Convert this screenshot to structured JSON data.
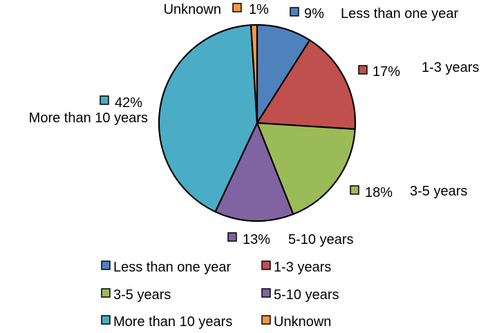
{
  "chart_data": {
    "type": "pie",
    "title": "",
    "legend_position": "bottom",
    "categories": [
      "Less than one year",
      "1-3 years",
      "3-5 years",
      "5-10 years",
      "More than 10 years",
      "Unknown"
    ],
    "values": [
      9,
      17,
      18,
      13,
      42,
      1
    ],
    "value_labels": [
      "9%",
      "17%",
      "18%",
      "13%",
      "42%",
      "1%"
    ],
    "colors": [
      "#4F81BD",
      "#C0504D",
      "#9BBB59",
      "#8064A2",
      "#4BACC6",
      "#F79646"
    ]
  }
}
